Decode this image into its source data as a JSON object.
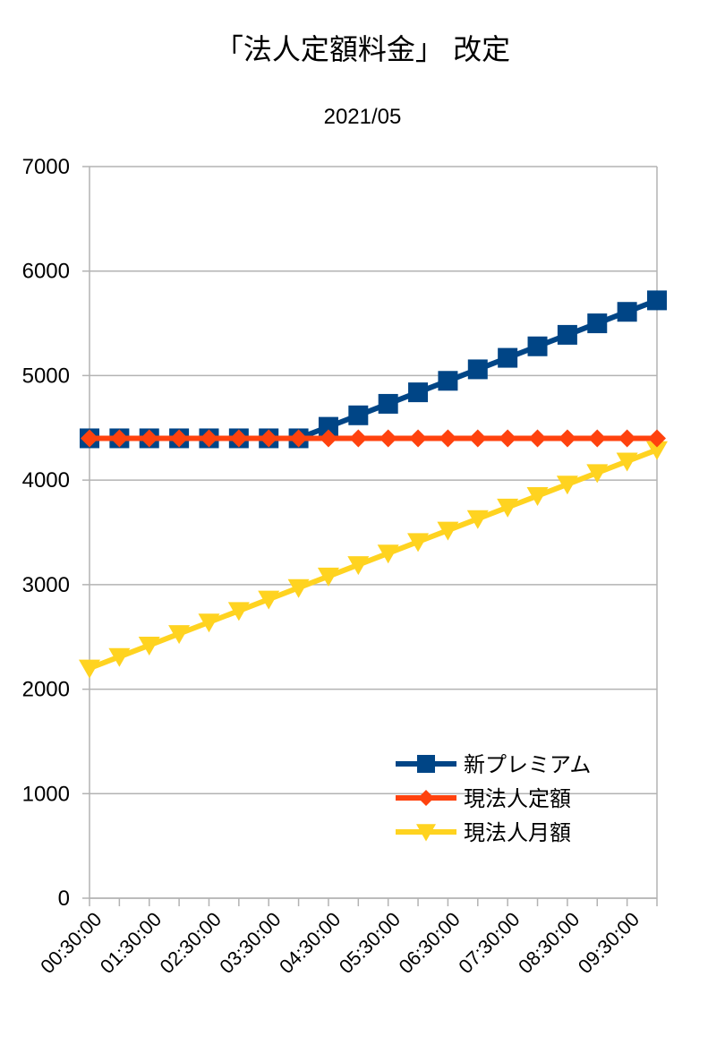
{
  "chart_data": {
    "type": "line",
    "title": "「法人定額料金」 改定",
    "subtitle": "2021/05",
    "xlabel": "",
    "ylabel": "",
    "ylim": [
      0,
      7000
    ],
    "y_ticks": [
      0,
      1000,
      2000,
      3000,
      4000,
      5000,
      6000,
      7000
    ],
    "x_tick_labels": [
      "00:30:00",
      "01:30:00",
      "02:30:00",
      "03:30:00",
      "04:30:00",
      "05:30:00",
      "06:30:00",
      "07:30:00",
      "08:30:00",
      "09:30:00"
    ],
    "grid": "horizontal",
    "legend_position": "bottom-right",
    "series": [
      {
        "name": "新プレミアム",
        "color": "#004586",
        "marker": "square",
        "values": [
          4400,
          4400,
          4400,
          4400,
          4400,
          4400,
          4400,
          4400,
          4510,
          4620,
          4730,
          4840,
          4950,
          5060,
          5170,
          5280,
          5390,
          5500,
          5610,
          5720
        ]
      },
      {
        "name": "現法人定額",
        "color": "#ff420e",
        "marker": "diamond",
        "values": [
          4400,
          4400,
          4400,
          4400,
          4400,
          4400,
          4400,
          4400,
          4400,
          4400,
          4400,
          4400,
          4400,
          4400,
          4400,
          4400,
          4400,
          4400,
          4400,
          4400
        ]
      },
      {
        "name": "現法人月額",
        "color": "#ffd320",
        "marker": "triangle-down",
        "values": [
          2200,
          2310,
          2420,
          2530,
          2640,
          2750,
          2860,
          2970,
          3080,
          3190,
          3300,
          3410,
          3520,
          3630,
          3740,
          3850,
          3960,
          4070,
          4180,
          4290
        ]
      }
    ]
  }
}
